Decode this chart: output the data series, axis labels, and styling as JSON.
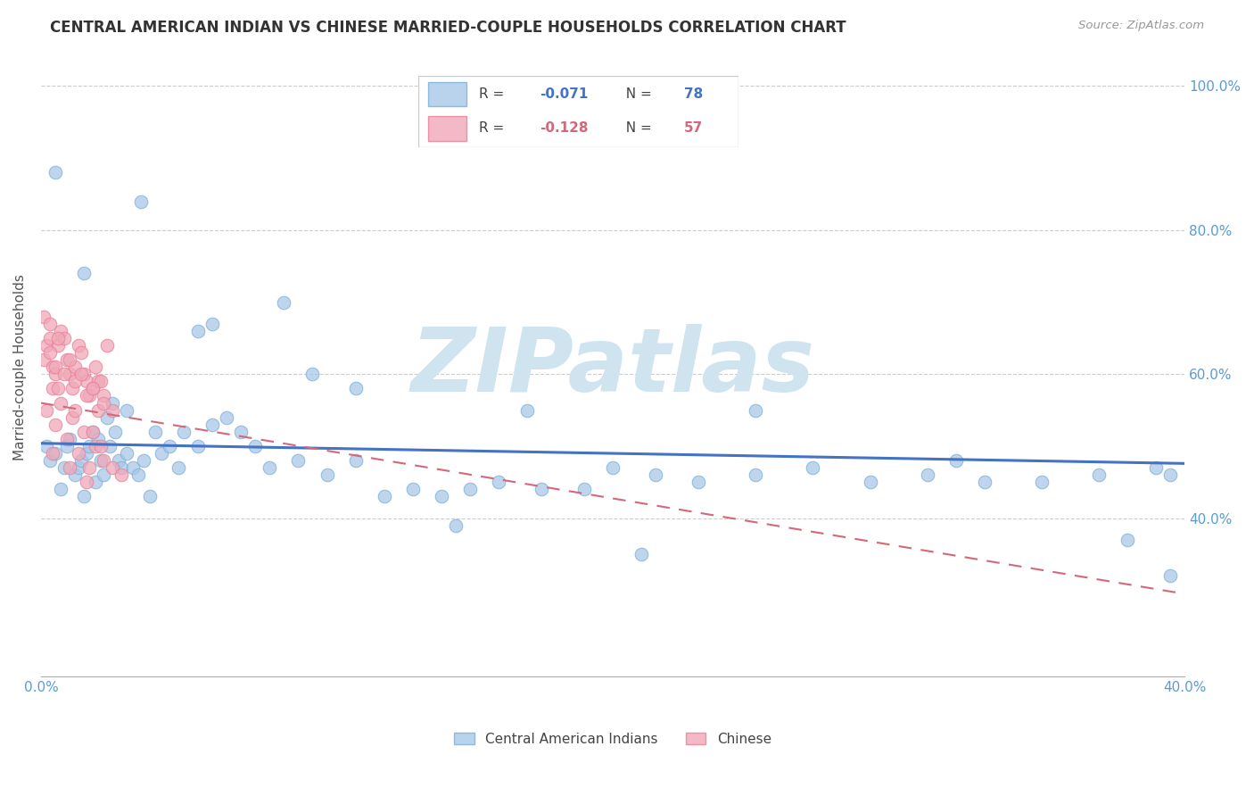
{
  "title": "CENTRAL AMERICAN INDIAN VS CHINESE MARRIED-COUPLE HOUSEHOLDS CORRELATION CHART",
  "source": "Source: ZipAtlas.com",
  "ylabel": "Married-couple Households",
  "blue_label": "Central American Indians",
  "pink_label": "Chinese",
  "blue_R": -0.071,
  "blue_N": 78,
  "pink_R": -0.128,
  "pink_N": 57,
  "xlim": [
    0.0,
    0.4
  ],
  "ylim": [
    0.18,
    1.04
  ],
  "xticks": [
    0.0,
    0.1,
    0.2,
    0.3,
    0.4
  ],
  "xtick_labels": [
    "0.0%",
    "",
    "",
    "",
    "40.0%"
  ],
  "yticks": [
    0.4,
    0.6,
    0.8,
    1.0
  ],
  "ytick_labels": [
    "40.0%",
    "60.0%",
    "80.0%",
    "100.0%"
  ],
  "background_color": "#ffffff",
  "blue_color": "#a8c8e8",
  "pink_color": "#f0a8b8",
  "blue_edge_color": "#7ab0d8",
  "pink_edge_color": "#e88098",
  "blue_line_color": "#4472c4",
  "pink_line_color": "#d4687a",
  "grid_color": "#cccccc",
  "title_color": "#333333",
  "axis_tick_color": "#5b9bd5",
  "source_color": "#999999",
  "ylabel_color": "#555555",
  "watermark_color": "#d0e4f0",
  "blue_scatter_x": [
    0.002,
    0.003,
    0.005,
    0.007,
    0.008,
    0.009,
    0.01,
    0.012,
    0.013,
    0.014,
    0.015,
    0.016,
    0.017,
    0.018,
    0.019,
    0.02,
    0.021,
    0.022,
    0.023,
    0.024,
    0.025,
    0.026,
    0.027,
    0.028,
    0.03,
    0.032,
    0.034,
    0.036,
    0.038,
    0.04,
    0.042,
    0.045,
    0.048,
    0.05,
    0.055,
    0.06,
    0.065,
    0.07,
    0.075,
    0.08,
    0.09,
    0.1,
    0.11,
    0.12,
    0.13,
    0.14,
    0.15,
    0.16,
    0.175,
    0.19,
    0.2,
    0.215,
    0.23,
    0.25,
    0.27,
    0.29,
    0.31,
    0.33,
    0.35,
    0.37,
    0.39,
    0.395,
    0.03,
    0.06,
    0.085,
    0.11,
    0.17,
    0.25,
    0.32,
    0.005,
    0.015,
    0.035,
    0.055,
    0.095,
    0.145,
    0.21,
    0.38,
    0.395
  ],
  "blue_scatter_y": [
    0.5,
    0.48,
    0.49,
    0.44,
    0.47,
    0.5,
    0.51,
    0.46,
    0.47,
    0.48,
    0.43,
    0.49,
    0.5,
    0.52,
    0.45,
    0.51,
    0.48,
    0.46,
    0.54,
    0.5,
    0.56,
    0.52,
    0.48,
    0.47,
    0.49,
    0.47,
    0.46,
    0.48,
    0.43,
    0.52,
    0.49,
    0.5,
    0.47,
    0.52,
    0.5,
    0.53,
    0.54,
    0.52,
    0.5,
    0.47,
    0.48,
    0.46,
    0.48,
    0.43,
    0.44,
    0.43,
    0.44,
    0.45,
    0.44,
    0.44,
    0.47,
    0.46,
    0.45,
    0.46,
    0.47,
    0.45,
    0.46,
    0.45,
    0.45,
    0.46,
    0.47,
    0.46,
    0.55,
    0.67,
    0.7,
    0.58,
    0.55,
    0.55,
    0.48,
    0.88,
    0.74,
    0.84,
    0.66,
    0.6,
    0.39,
    0.35,
    0.37,
    0.32
  ],
  "pink_scatter_x": [
    0.001,
    0.002,
    0.003,
    0.004,
    0.005,
    0.006,
    0.007,
    0.008,
    0.009,
    0.01,
    0.011,
    0.012,
    0.013,
    0.014,
    0.015,
    0.016,
    0.017,
    0.018,
    0.019,
    0.02,
    0.021,
    0.022,
    0.023,
    0.003,
    0.005,
    0.008,
    0.012,
    0.016,
    0.02,
    0.025,
    0.004,
    0.007,
    0.011,
    0.015,
    0.019,
    0.001,
    0.003,
    0.006,
    0.01,
    0.014,
    0.018,
    0.022,
    0.002,
    0.005,
    0.009,
    0.013,
    0.017,
    0.021,
    0.006,
    0.012,
    0.018,
    0.004,
    0.01,
    0.016,
    0.022,
    0.025,
    0.028
  ],
  "pink_scatter_y": [
    0.62,
    0.64,
    0.65,
    0.61,
    0.6,
    0.64,
    0.66,
    0.65,
    0.62,
    0.6,
    0.58,
    0.61,
    0.64,
    0.63,
    0.6,
    0.59,
    0.57,
    0.58,
    0.61,
    0.59,
    0.59,
    0.57,
    0.64,
    0.63,
    0.61,
    0.6,
    0.59,
    0.57,
    0.55,
    0.55,
    0.58,
    0.56,
    0.54,
    0.52,
    0.5,
    0.68,
    0.67,
    0.65,
    0.62,
    0.6,
    0.58,
    0.56,
    0.55,
    0.53,
    0.51,
    0.49,
    0.47,
    0.5,
    0.58,
    0.55,
    0.52,
    0.49,
    0.47,
    0.45,
    0.48,
    0.47,
    0.46
  ],
  "blue_trend_x": [
    0.0,
    0.4
  ],
  "blue_trend_y": [
    0.504,
    0.476
  ],
  "pink_trend_x": [
    0.0,
    0.4
  ],
  "pink_trend_y": [
    0.56,
    0.295
  ],
  "figsize": [
    14.06,
    8.92
  ],
  "dpi": 100
}
